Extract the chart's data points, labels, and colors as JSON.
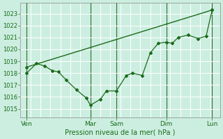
{
  "bg_color": "#cceee0",
  "grid_color": "#aaddcc",
  "line_color": "#1a6b1a",
  "ylabel_ticks": [
    1015,
    1016,
    1017,
    1018,
    1019,
    1020,
    1021,
    1022,
    1023
  ],
  "ylim": [
    1014.3,
    1023.9
  ],
  "xlabel": "Pression niveau de la mer( hPa )",
  "day_labels": [
    "Ven",
    "",
    "Mar",
    "Sam",
    "",
    "Dim",
    "",
    "Lun"
  ],
  "vline_positions": [
    0,
    3.2,
    4.5,
    7.0,
    9.3
  ],
  "vline_labels": [
    "Ven",
    "Mar",
    "Sam",
    "Dim",
    "Lun"
  ],
  "xlim": [
    -0.3,
    9.7
  ],
  "smooth_line_x": [
    0,
    9.3
  ],
  "smooth_line_y": [
    1018.5,
    1023.3
  ],
  "jagged_line_x": [
    0,
    0.5,
    0.9,
    1.3,
    1.6,
    2.0,
    2.5,
    3.0,
    3.2,
    3.7,
    4.0,
    4.5,
    5.0,
    5.3,
    5.8,
    6.2,
    6.6,
    7.0,
    7.3,
    7.6,
    8.1,
    8.6,
    9.0,
    9.3
  ],
  "jagged_line_y": [
    1018.0,
    1018.8,
    1018.6,
    1018.2,
    1018.1,
    1017.4,
    1016.6,
    1015.9,
    1015.3,
    1015.8,
    1016.5,
    1016.5,
    1017.8,
    1018.0,
    1017.8,
    1019.7,
    1020.5,
    1020.6,
    1020.5,
    1021.0,
    1021.2,
    1020.9,
    1021.1,
    1023.3
  ],
  "tick_fontsize": 6,
  "xlabel_fontsize": 7,
  "spine_color": "#888888"
}
